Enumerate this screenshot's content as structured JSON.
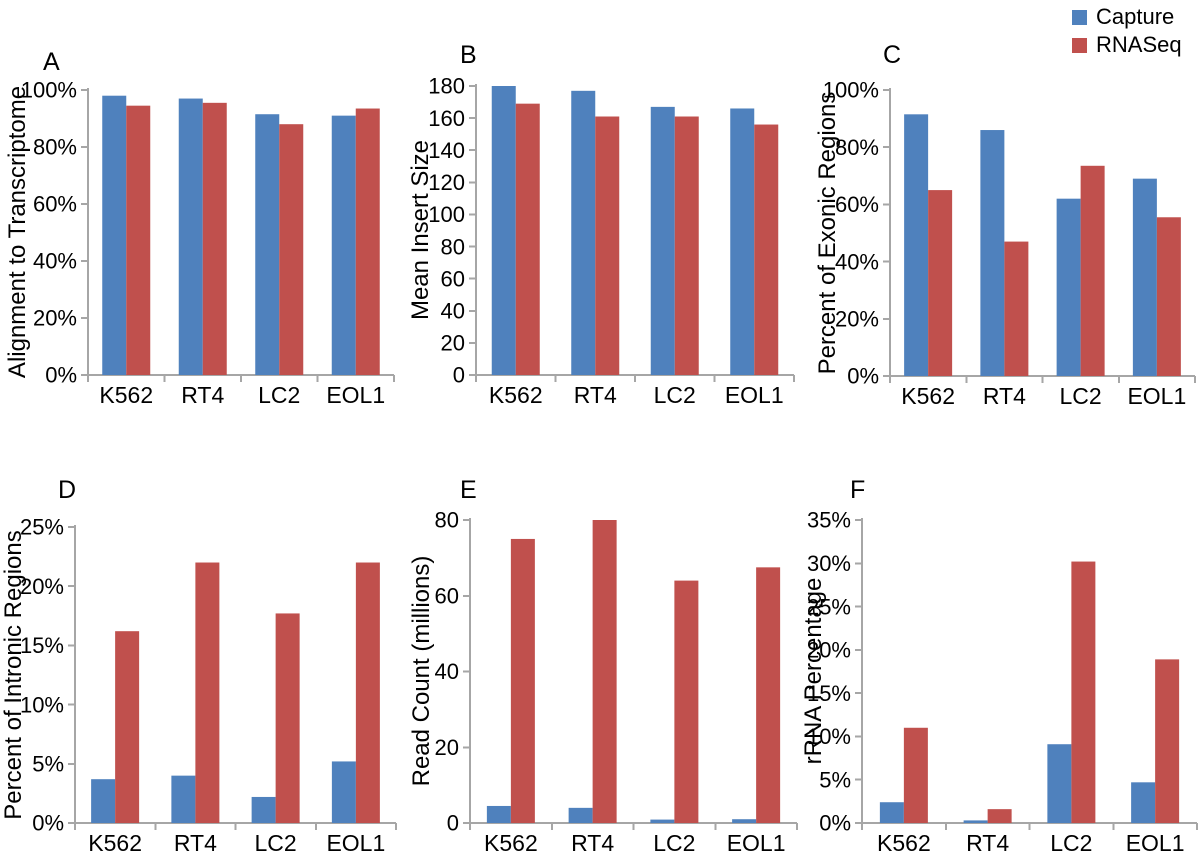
{
  "legend": {
    "items": [
      {
        "label": "Capture",
        "color": "#4F81BD"
      },
      {
        "label": "RNASeq",
        "color": "#C0504D"
      }
    ],
    "position": "top-right"
  },
  "colors": {
    "capture_blue": "#4F81BD",
    "rnaseq_red": "#C0504D",
    "axis_gray": "#A6A6A6",
    "text": "#000000",
    "background": "#FFFFFF"
  },
  "chart_data": [
    {
      "panel": "A",
      "type": "bar",
      "title": "",
      "xlabel": "",
      "ylabel": "Alignment to Transcriptome",
      "categories": [
        "K562",
        "RT4",
        "LC2",
        "EOL1"
      ],
      "series": [
        {
          "name": "Capture",
          "values": [
            98,
            97,
            91.5,
            91
          ]
        },
        {
          "name": "RNASeq",
          "values": [
            94.5,
            95.5,
            88,
            93.5
          ]
        }
      ],
      "ylim": [
        0,
        100
      ],
      "ystep": 20,
      "tick_format": "percent",
      "grid": false
    },
    {
      "panel": "B",
      "type": "bar",
      "title": "",
      "xlabel": "",
      "ylabel": "Mean Insert Size",
      "categories": [
        "K562",
        "RT4",
        "LC2",
        "EOL1"
      ],
      "series": [
        {
          "name": "Capture",
          "values": [
            180,
            177,
            167,
            166
          ]
        },
        {
          "name": "RNASeq",
          "values": [
            169,
            161,
            161,
            156
          ]
        }
      ],
      "ylim": [
        0,
        180
      ],
      "ystep": 20,
      "tick_format": "number",
      "grid": false
    },
    {
      "panel": "C",
      "type": "bar",
      "title": "",
      "xlabel": "",
      "ylabel": "Percent of Exonic Regions",
      "categories": [
        "K562",
        "RT4",
        "LC2",
        "EOL1"
      ],
      "series": [
        {
          "name": "Capture",
          "values": [
            91.5,
            86,
            62,
            69
          ]
        },
        {
          "name": "RNASeq",
          "values": [
            65,
            47,
            73.5,
            55.5
          ]
        }
      ],
      "ylim": [
        0,
        100
      ],
      "ystep": 20,
      "tick_format": "percent",
      "grid": false
    },
    {
      "panel": "D",
      "type": "bar",
      "title": "",
      "xlabel": "",
      "ylabel": "Percent of Intronic Regions",
      "categories": [
        "K562",
        "RT4",
        "LC2",
        "EOL1"
      ],
      "series": [
        {
          "name": "Capture",
          "values": [
            3.7,
            4,
            2.2,
            5.2
          ]
        },
        {
          "name": "RNASeq",
          "values": [
            16.2,
            22,
            17.7,
            22
          ]
        }
      ],
      "ylim": [
        0,
        25
      ],
      "ystep": 5,
      "tick_format": "percent",
      "grid": false
    },
    {
      "panel": "E",
      "type": "bar",
      "title": "",
      "xlabel": "",
      "ylabel": "Read Count (millions)",
      "categories": [
        "K562",
        "RT4",
        "LC2",
        "EOL1"
      ],
      "series": [
        {
          "name": "Capture",
          "values": [
            4.5,
            4,
            0.9,
            1
          ]
        },
        {
          "name": "RNASeq",
          "values": [
            75,
            80,
            64,
            67.5
          ]
        }
      ],
      "ylim": [
        0,
        80
      ],
      "ystep": 20,
      "tick_format": "number",
      "grid": false
    },
    {
      "panel": "F",
      "type": "bar",
      "title": "",
      "xlabel": "",
      "ylabel": "rRNA Percentage",
      "categories": [
        "K562",
        "RT4",
        "LC2",
        "EOL1"
      ],
      "series": [
        {
          "name": "Capture",
          "values": [
            2.4,
            0.3,
            9.1,
            4.7
          ]
        },
        {
          "name": "RNASeq",
          "values": [
            11,
            1.6,
            30.2,
            18.9
          ]
        }
      ],
      "ylim": [
        0,
        35
      ],
      "ystep": 5,
      "tick_format": "percent",
      "grid": false
    }
  ]
}
